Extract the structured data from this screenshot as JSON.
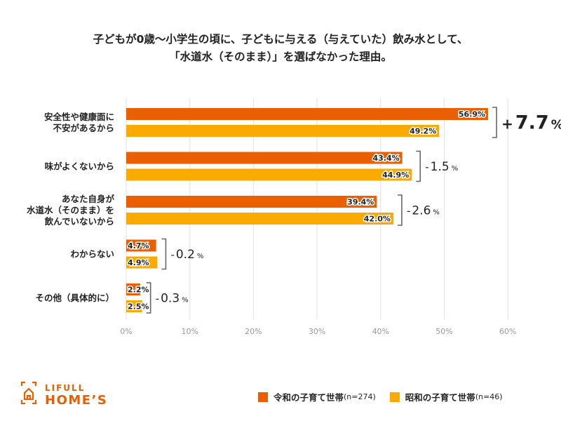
{
  "title": {
    "line1": "子どもが0歳～小学生の頃に、子どもに与える（与えていた）飲み水として、",
    "line2": "「水道水（そのまま）」を選ばなかった理由。"
  },
  "colors": {
    "reiwa": "#EA6000",
    "showa": "#FBAA00",
    "highlight": "#EA6000",
    "grid": "#E6E6E6",
    "bracket": "#666666"
  },
  "chart_data": {
    "type": "bar",
    "orientation": "horizontal",
    "title": "子どもが0歳～小学生の頃に、子どもに与える（与えていた）飲み水として、「水道水（そのまま）」を選ばなかった理由。",
    "categories": [
      [
        "安全性や健康面に",
        "不安があるから"
      ],
      [
        "味がよくないから"
      ],
      [
        "あなた自身が",
        "水道水（そのまま）を",
        "飲んでいないから"
      ],
      [
        "わからない"
      ],
      [
        "その他（具体的に）"
      ]
    ],
    "series": [
      {
        "name": "令和の子育て世帯",
        "n_label": "(n=274)",
        "values": [
          56.9,
          43.4,
          39.4,
          4.7,
          2.2
        ],
        "labels": [
          "56.9%",
          "43.4%",
          "39.4%",
          "4.7%",
          "2.2%"
        ]
      },
      {
        "name": "昭和の子育て世帯",
        "n_label": "(n=46)",
        "values": [
          49.2,
          44.9,
          42.0,
          4.9,
          2.5
        ],
        "labels": [
          "49.2%",
          "44.9%",
          "42.0%",
          "4.9%",
          "2.5%"
        ]
      }
    ],
    "differences": [
      {
        "sign": "+",
        "value": "7.7",
        "unit": "%",
        "highlight": true
      },
      {
        "sign": "-",
        "value": "1.5",
        "unit": "%",
        "highlight": false
      },
      {
        "sign": "-",
        "value": "2.6",
        "unit": "%",
        "highlight": false
      },
      {
        "sign": "-",
        "value": "0.2",
        "unit": "%",
        "highlight": false
      },
      {
        "sign": "-",
        "value": "0.3",
        "unit": "%",
        "highlight": false
      }
    ],
    "xlim": [
      0,
      60
    ],
    "xticks": [
      0,
      10,
      20,
      30,
      40,
      50,
      60
    ],
    "xtick_labels": [
      "0%",
      "10%",
      "20%",
      "30%",
      "40%",
      "50%",
      "60%"
    ],
    "grid": true,
    "legend_position": "bottom-right"
  },
  "legend": {
    "items": [
      {
        "label": "令和の子育て世帯",
        "n": "(n=274)"
      },
      {
        "label": "昭和の子育て世帯",
        "n": "(n=46)"
      }
    ]
  },
  "logo": {
    "line1": "LIFULL",
    "line2": "HOME’S"
  }
}
